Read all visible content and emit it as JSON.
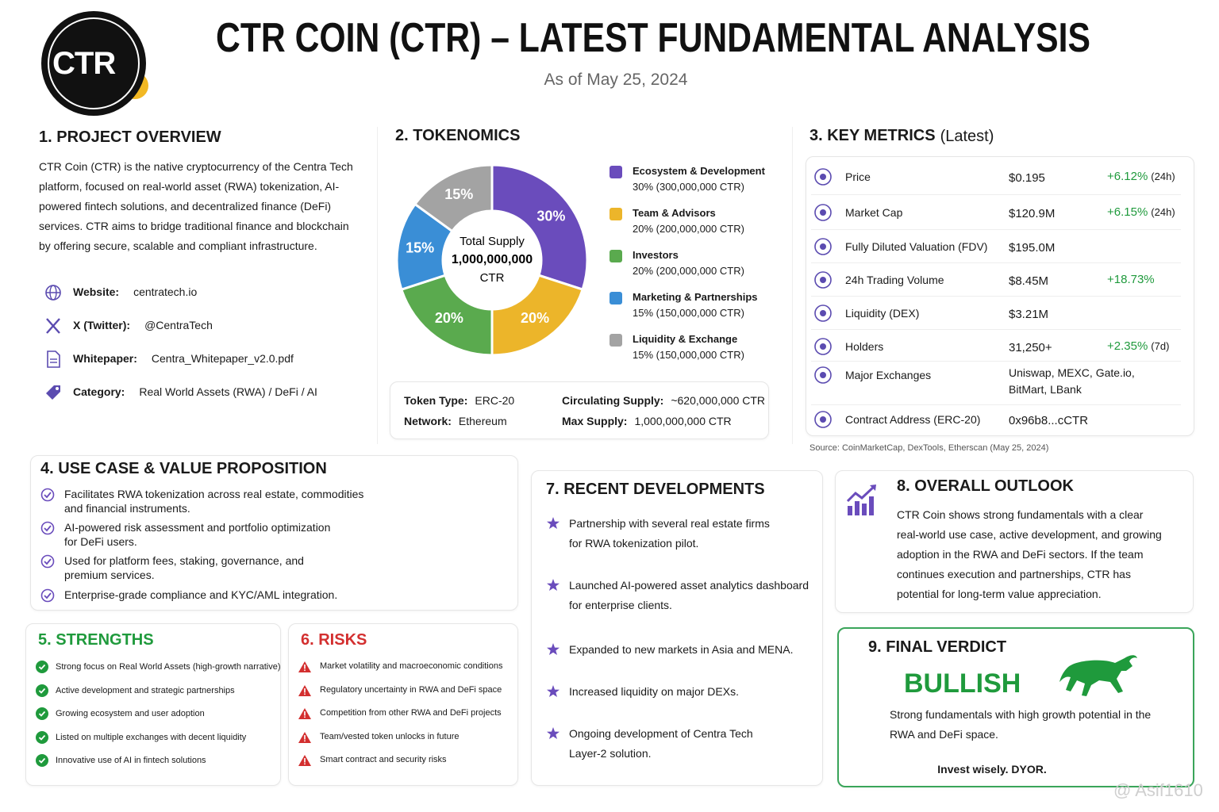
{
  "header": {
    "logo": "CTR",
    "title": "CTR COIN (CTR) – LATEST FUNDAMENTAL ANALYSIS",
    "date": "As of May 25, 2024"
  },
  "overview": {
    "heading": "1. PROJECT OVERVIEW",
    "text": "CTR Coin (CTR) is the native cryptocurrency of the Centra Tech platform, focused on real-world asset (RWA) tokenization, AI-powered fintech solutions, and decentralized finance (DeFi) services. CTR aims to bridge traditional finance and blockchain by offering secure, scalable and compliant infrastructure.",
    "links": [
      {
        "label": "Website:",
        "value": "centratech.io"
      },
      {
        "label": "X (Twitter):",
        "value": "@CentraTech"
      },
      {
        "label": "Whitepaper:",
        "value": "Centra_Whitepaper_v2.0.pdf"
      },
      {
        "label": "Category:",
        "value": "Real World Assets (RWA) / DeFi / AI"
      }
    ]
  },
  "tokenomics": {
    "heading": "2. TOKENOMICS",
    "chart": {
      "type": "pie",
      "center": [
        "Total Supply",
        "1,000,000,000",
        "CTR"
      ],
      "categories": [
        "Ecosystem & Development",
        "Team & Advisors",
        "Investors",
        "Marketing & Partnerships",
        "Liquidity & Exchange"
      ],
      "values": [
        30,
        20,
        20,
        15,
        15
      ],
      "value_labels": [
        "30%",
        "20%",
        "20%",
        "15%",
        "15%"
      ],
      "details": [
        "30% (300,000,000 CTR)",
        "20% (200,000,000 CTR)",
        "20% (200,000,000 CTR)",
        "15% (150,000,000 CTR)",
        "15% (150,000,000 CTR)"
      ],
      "colors": [
        "#6a4cbc",
        "#ecb52a",
        "#5aaa4e",
        "#3a8ed6",
        "#a3a3a3"
      ]
    },
    "facts": [
      {
        "label": "Token Type:",
        "value": "ERC-20"
      },
      {
        "label": "Network:",
        "value": "Ethereum"
      },
      {
        "label": "Circulating Supply:",
        "value": "~620,000,000 CTR"
      },
      {
        "label": "Max Supply:",
        "value": "1,000,000,000 CTR"
      }
    ]
  },
  "metrics": {
    "heading": "3. KEY METRICS",
    "heading_note": "(Latest)",
    "rows": [
      {
        "name": "Price",
        "value": "$0.195",
        "change": "+6.12%",
        "period": "(24h)"
      },
      {
        "name": "Market Cap",
        "value": "$120.9M",
        "change": "+6.15%",
        "period": "(24h)"
      },
      {
        "name": "Fully Diluted Valuation (FDV)",
        "value": "$195.0M"
      },
      {
        "name": "24h Trading Volume",
        "value": "$8.45M",
        "change": "+18.73%"
      },
      {
        "name": "Liquidity (DEX)",
        "value": "$3.21M"
      },
      {
        "name": "Holders",
        "value": "31,250+",
        "change": "+2.35%",
        "period": "(7d)"
      },
      {
        "name": "Major Exchanges",
        "value": "Uniswap, MEXC, Gate.io, BitMart, LBank"
      },
      {
        "name": "Contract Address (ERC-20)",
        "value": "0x96b8...cCTR"
      }
    ],
    "source": "Source: CoinMarketCap, DexTools, Etherscan (May 25, 2024)"
  },
  "use_case": {
    "heading": "4. USE CASE & VALUE PROPOSITION",
    "items": [
      "Facilitates RWA tokenization across real estate, commodities and financial instruments.",
      "AI-powered risk assessment and portfolio optimization for DeFi users.",
      "Used for platform fees, staking, governance, and premium services.",
      "Enterprise-grade compliance and KYC/AML integration."
    ]
  },
  "strengths": {
    "heading": "5. STRENGTHS",
    "items": [
      "Strong focus on Real World Assets (high-growth narrative)",
      "Active development and strategic partnerships",
      "Growing ecosystem and user adoption",
      "Listed on multiple exchanges with decent liquidity",
      "Innovative use of AI in fintech solutions"
    ]
  },
  "risks": {
    "heading": "6. RISKS",
    "items": [
      "Market volatility and macroeconomic conditions",
      "Regulatory uncertainty in RWA and DeFi space",
      "Competition from other RWA and DeFi projects",
      "Team/vested token unlocks in future",
      "Smart contract and security risks"
    ]
  },
  "developments": {
    "heading": "7. RECENT DEVELOPMENTS",
    "items": [
      "Partnership with several real estate firms for RWA tokenization pilot.",
      "Launched AI-powered asset analytics dashboard for enterprise clients.",
      "Expanded to new markets in Asia and MENA.",
      "Increased liquidity on major DEXs.",
      "Ongoing development of Centra Tech Layer-2 solution."
    ]
  },
  "outlook": {
    "heading": "8. OVERALL OUTLOOK",
    "text": "CTR Coin shows strong fundamentals with a clear real-world use case, active development, and growing adoption in the RWA and DeFi sectors. If the team continues execution and partnerships, CTR has potential for long-term value appreciation."
  },
  "verdict": {
    "heading": "9. FINAL VERDICT",
    "verdict": "BULLISH",
    "text": "Strong fundamentals with high growth potential in the RWA and DeFi space.",
    "footer": "Invest wisely. DYOR."
  },
  "watermark": "@ Asif1610"
}
